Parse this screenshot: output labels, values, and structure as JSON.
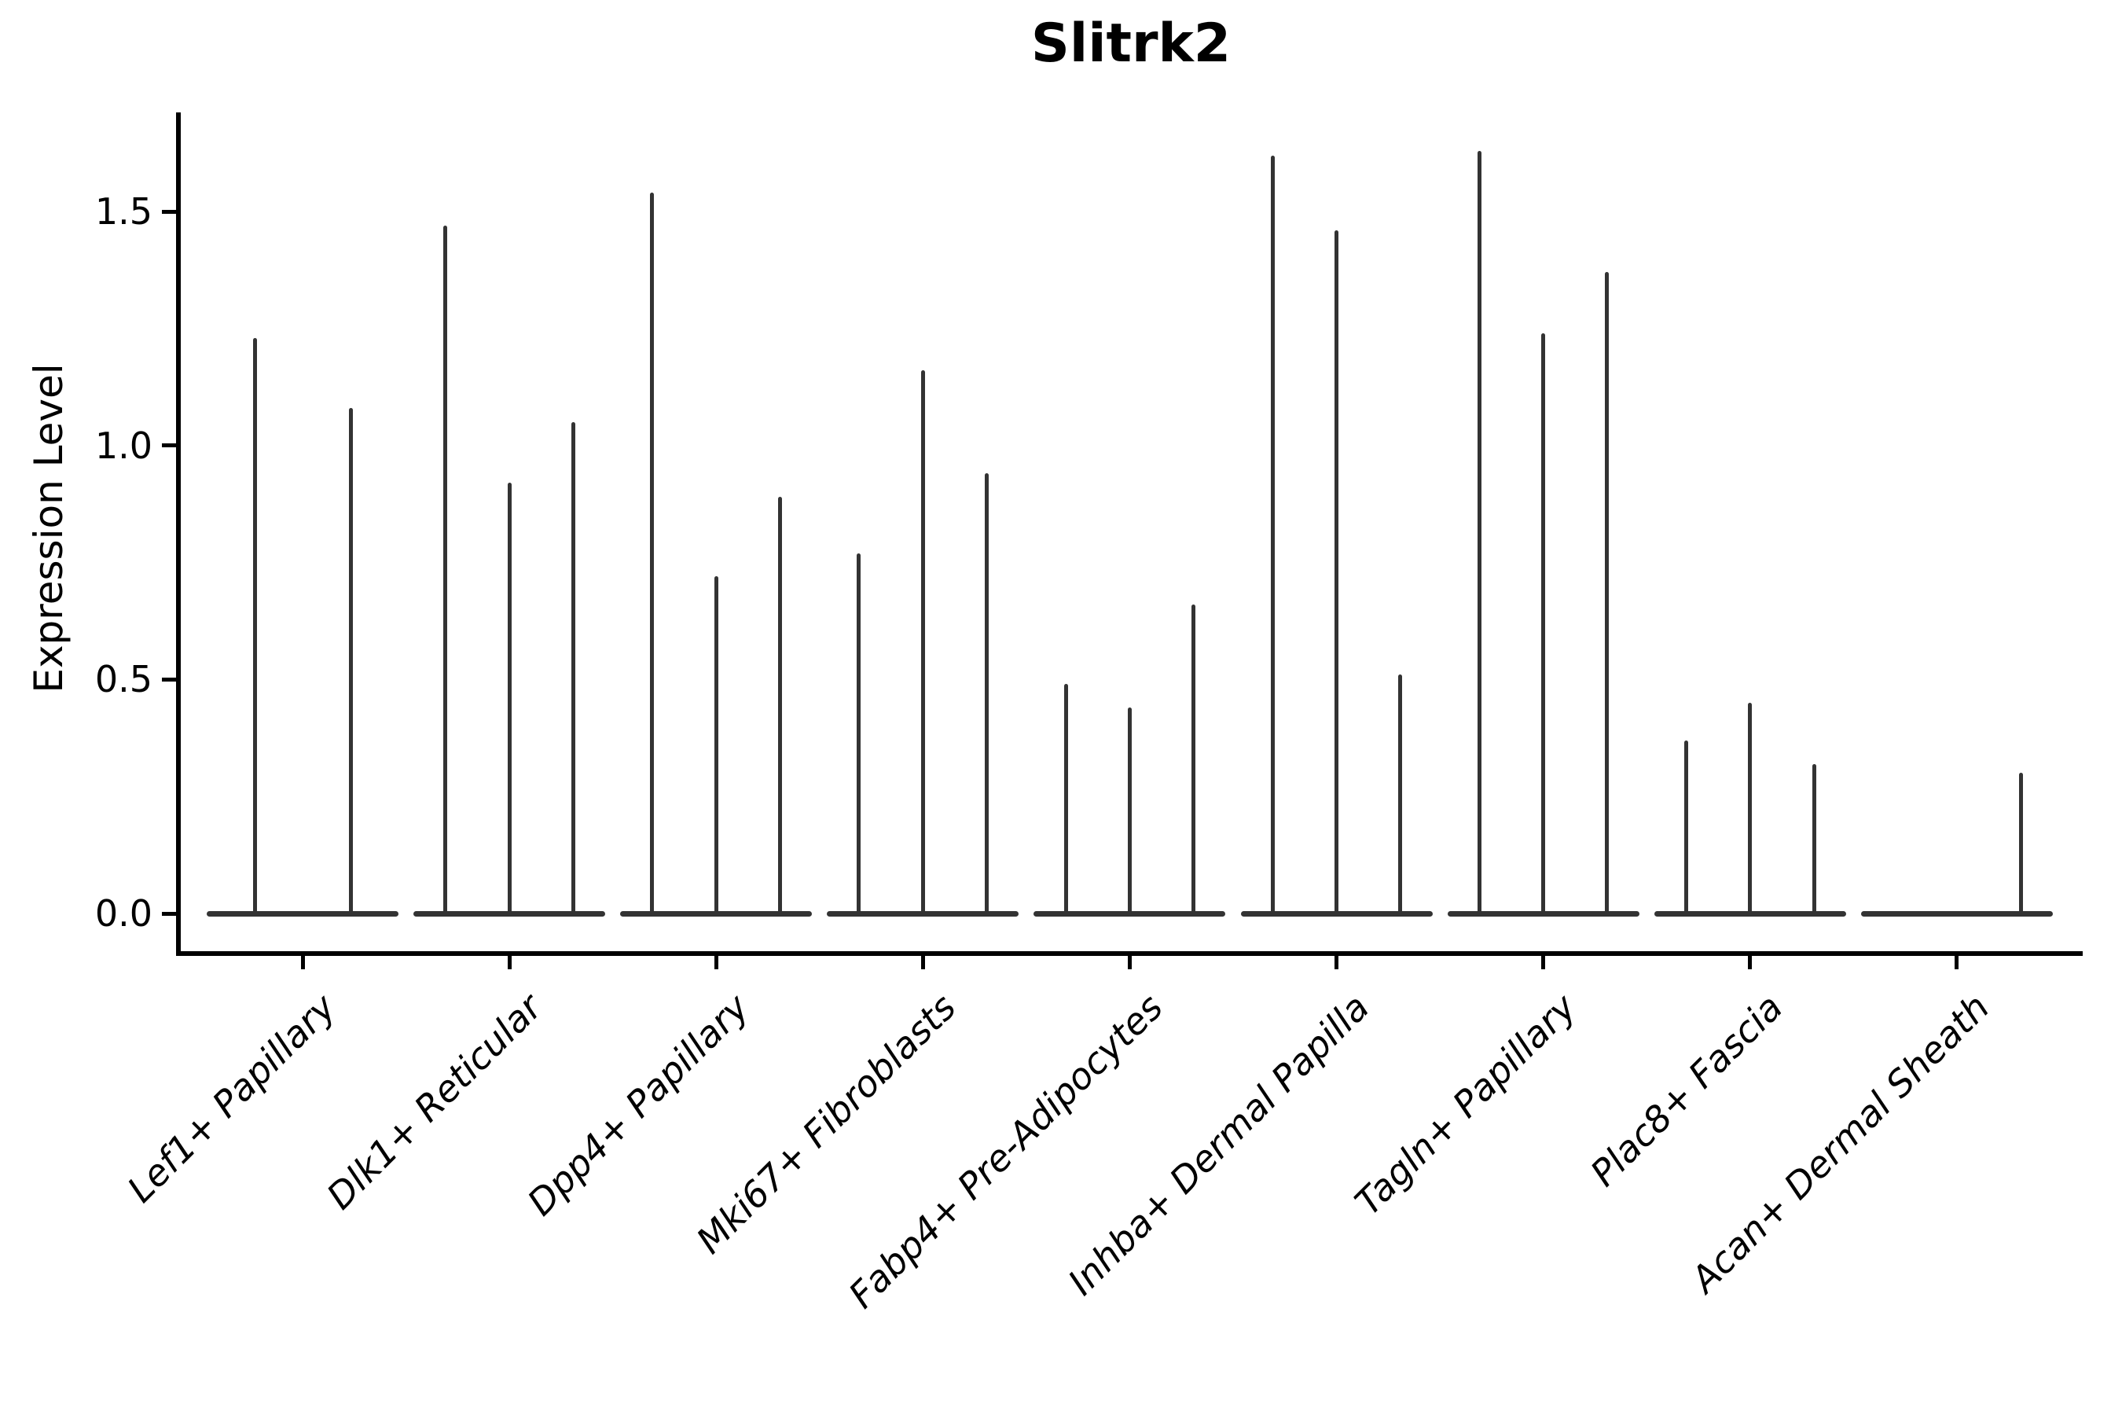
{
  "chart_data": {
    "type": "violin",
    "title": "Slitrk2",
    "ylabel": "Expression Level",
    "xlabel": "",
    "ylim": [
      0,
      1.72
    ],
    "grid": false,
    "legend": "none",
    "background_color": "#ffffff",
    "violin_color": "#333333",
    "axis_color": "#000000",
    "text_color": "#000000",
    "shape_note": "Sparse single-cell expression violins: each violin is a wide flat pancake at 0 with a thin needle rising to its maximum value; null = all-zero flat violin with no needle.",
    "yticks": [
      {
        "value": 0.0,
        "label": "0.0"
      },
      {
        "value": 0.5,
        "label": "0.5"
      },
      {
        "value": 1.0,
        "label": "1.0"
      },
      {
        "value": 1.5,
        "label": "1.5"
      }
    ],
    "groups": [
      {
        "label": "Lef1+ Papillary",
        "violin_maxima": [
          1.23,
          1.08
        ]
      },
      {
        "label": "Dlk1+ Reticular",
        "violin_maxima": [
          1.47,
          0.92,
          1.05
        ]
      },
      {
        "label": "Dpp4+ Papillary",
        "violin_maxima": [
          1.54,
          0.72,
          0.89
        ]
      },
      {
        "label": "Mki67+ Fibroblasts",
        "violin_maxima": [
          0.77,
          1.16,
          0.94
        ]
      },
      {
        "label": "Fabp4+ Pre-Adipocytes",
        "violin_maxima": [
          0.49,
          0.44,
          0.66
        ]
      },
      {
        "label": "Inhba+ Dermal Papilla",
        "violin_maxima": [
          1.62,
          1.46,
          0.51
        ]
      },
      {
        "label": "Tagln+ Papillary",
        "violin_maxima": [
          1.63,
          1.24,
          1.37
        ]
      },
      {
        "label": "Plac8+ Fascia",
        "violin_maxima": [
          0.37,
          0.45,
          0.32
        ]
      },
      {
        "label": "Acan+ Dermal Sheath",
        "violin_maxima": [
          null,
          null,
          0.3
        ]
      }
    ]
  }
}
